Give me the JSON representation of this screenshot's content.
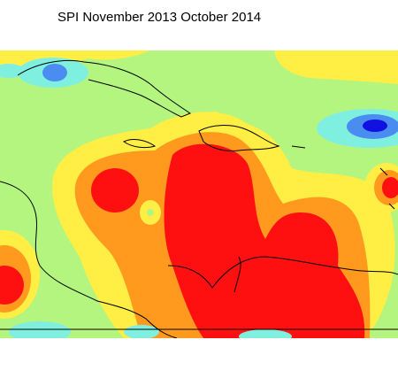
{
  "title": "SPI November 2013 October 2014"
}
